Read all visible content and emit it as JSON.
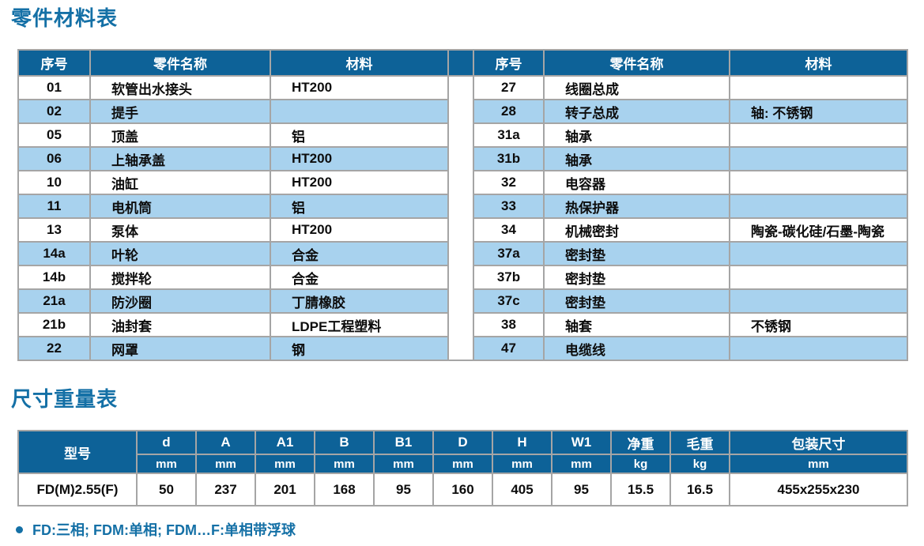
{
  "sections": {
    "parts_title": "零件材料表",
    "dims_title": "尺寸重量表"
  },
  "colors": {
    "header_bg": "#0d6298",
    "alt_row_bg": "#a8d2ee",
    "title_blue": "#1470a6",
    "border_gray": "#a5a5a5"
  },
  "parts_table": {
    "headers": [
      "序号",
      "零件名称",
      "材料"
    ],
    "left_rows": [
      {
        "no": "01",
        "name": "软管出水接头",
        "material": "HT200"
      },
      {
        "no": "02",
        "name": "提手",
        "material": ""
      },
      {
        "no": "05",
        "name": "顶盖",
        "material": "铝"
      },
      {
        "no": "06",
        "name": "上轴承盖",
        "material": "HT200"
      },
      {
        "no": "10",
        "name": "油缸",
        "material": "HT200"
      },
      {
        "no": "11",
        "name": "电机筒",
        "material": "铝"
      },
      {
        "no": "13",
        "name": "泵体",
        "material": "HT200"
      },
      {
        "no": "14a",
        "name": "叶轮",
        "material": "合金"
      },
      {
        "no": "14b",
        "name": "搅拌轮",
        "material": "合金"
      },
      {
        "no": "21a",
        "name": "防沙圈",
        "material": "丁腈橡胶"
      },
      {
        "no": "21b",
        "name": "油封套",
        "material": "LDPE工程塑料"
      },
      {
        "no": "22",
        "name": "网罩",
        "material": "钢"
      }
    ],
    "right_rows": [
      {
        "no": "27",
        "name": "线圈总成",
        "material": ""
      },
      {
        "no": "28",
        "name": "转子总成",
        "material": "轴: 不锈钢"
      },
      {
        "no": "31a",
        "name": "轴承",
        "material": ""
      },
      {
        "no": "31b",
        "name": "轴承",
        "material": ""
      },
      {
        "no": "32",
        "name": "电容器",
        "material": ""
      },
      {
        "no": "33",
        "name": "热保护器",
        "material": ""
      },
      {
        "no": "34",
        "name": "机械密封",
        "material": "陶瓷-碳化硅/石墨-陶瓷"
      },
      {
        "no": "37a",
        "name": "密封垫",
        "material": ""
      },
      {
        "no": "37b",
        "name": "密封垫",
        "material": ""
      },
      {
        "no": "37c",
        "name": "密封垫",
        "material": ""
      },
      {
        "no": "38",
        "name": "轴套",
        "material": "不锈钢"
      },
      {
        "no": "47",
        "name": "电缆线",
        "material": ""
      }
    ]
  },
  "dimensions_table": {
    "model_header": "型号",
    "columns": [
      {
        "label": "d",
        "unit": "mm"
      },
      {
        "label": "A",
        "unit": "mm"
      },
      {
        "label": "A1",
        "unit": "mm"
      },
      {
        "label": "B",
        "unit": "mm"
      },
      {
        "label": "B1",
        "unit": "mm"
      },
      {
        "label": "D",
        "unit": "mm"
      },
      {
        "label": "H",
        "unit": "mm"
      },
      {
        "label": "W1",
        "unit": "mm"
      },
      {
        "label": "净重",
        "unit": "kg"
      },
      {
        "label": "毛重",
        "unit": "kg"
      },
      {
        "label": "包装尺寸",
        "unit": "mm"
      }
    ],
    "rows": [
      {
        "model": "FD(M)2.55(F)",
        "values": [
          "50",
          "237",
          "201",
          "168",
          "95",
          "160",
          "405",
          "95",
          "15.5",
          "16.5",
          "455x255x230"
        ]
      }
    ]
  },
  "footnote": {
    "text": "FD:三相; FDM:单相; FDM…F:单相带浮球"
  }
}
